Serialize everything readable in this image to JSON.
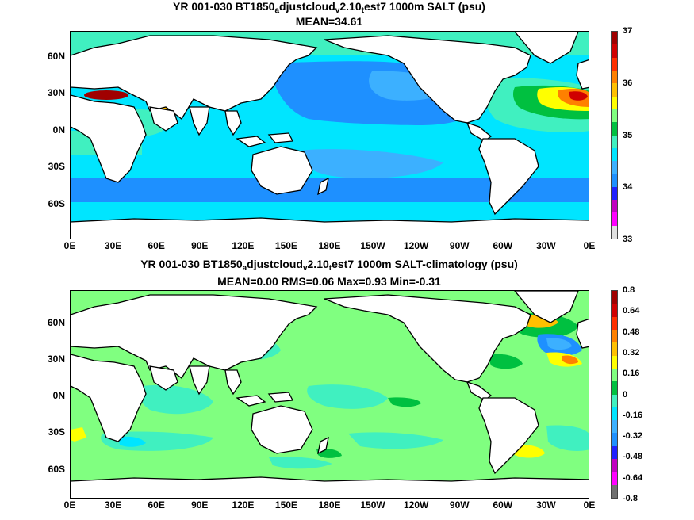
{
  "maps": [
    {
      "title_parts": [
        "YR 001-030 BT1850",
        "a",
        "djustcloud",
        "v",
        "2.10",
        "t",
        "est7 1000m SALT (psu)"
      ],
      "stats": "MEAN=34.61",
      "colorbar_labels": [
        "37",
        "36",
        "35",
        "34",
        "33"
      ],
      "colorbar_colors": [
        "#e0e0e0",
        "#ff00ff",
        "#c000c0",
        "#2020ff",
        "#1e90ff",
        "#3cb0ff",
        "#00e5ff",
        "#40f0c0",
        "#00c040",
        "#80ff80",
        "#ffff00",
        "#ffc000",
        "#ff8000",
        "#ff3000",
        "#d00000",
        "#a00000"
      ],
      "field": "salt"
    },
    {
      "title_parts": [
        "YR 001-030 BT1850",
        "a",
        "djustcloud",
        "v",
        "2.10",
        "t",
        "est7 1000m SALT-climatology (psu)"
      ],
      "stats": "MEAN=0.00   RMS=0.06   Max=0.93   Min=-0.31",
      "colorbar_labels": [
        "0.8",
        "0.64",
        "0.48",
        "0.32",
        "0.16",
        "0",
        "-0.16",
        "-0.32",
        "-0.48",
        "-0.64",
        "-0.8"
      ],
      "colorbar_colors": [
        "#707070",
        "#ff00ff",
        "#c000c0",
        "#2020ff",
        "#1e90ff",
        "#3cb0ff",
        "#00e5ff",
        "#40f0c0",
        "#00c040",
        "#80ff80",
        "#ffff00",
        "#ffc000",
        "#ff8000",
        "#ff3000",
        "#d00000",
        "#a00000"
      ],
      "field": "anom"
    }
  ],
  "lat_labels": [
    "60N",
    "30N",
    "0N",
    "30S",
    "60S"
  ],
  "lon_labels": [
    "0E",
    "30E",
    "60E",
    "90E",
    "120E",
    "150E",
    "180E",
    "150W",
    "120W",
    "90W",
    "60W",
    "30W",
    "0E"
  ]
}
